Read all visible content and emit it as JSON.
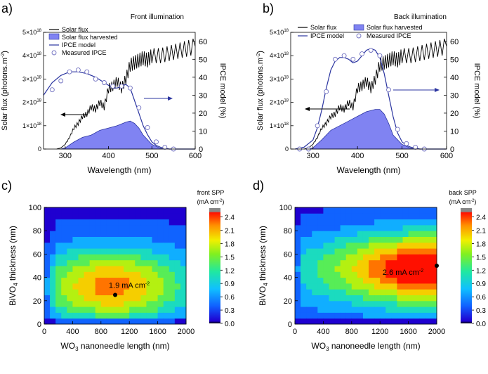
{
  "chart_data": [
    {
      "panel": "a)",
      "type": "line",
      "title": "Front illumination",
      "xlabel": "Wavelength (nm)",
      "ylabel_left": "Solar flux (photons.m",
      "ylabel_left_sup": "-2",
      "ylabel_left_end": ")",
      "ylabel_right": "IPCE model (%)",
      "xlim": [
        250,
        600
      ],
      "ylim_left": [
        0,
        5e+18
      ],
      "ylim_right": [
        0,
        65
      ],
      "xticks": [
        "300",
        "400",
        "500",
        "600"
      ],
      "xtick_values": [
        300,
        400,
        500,
        600
      ],
      "yticks_left": [
        {
          "m": "0",
          "e": ""
        },
        {
          "m": "1×10",
          "e": "18"
        },
        {
          "m": "2×10",
          "e": "18"
        },
        {
          "m": "3×10",
          "e": "18"
        },
        {
          "m": "4×10",
          "e": "18"
        },
        {
          "m": "5×10",
          "e": "18"
        }
      ],
      "yticks_left_values": [
        0,
        1e+18,
        2e+18,
        3e+18,
        4e+18,
        5e+18
      ],
      "yticks_right": [
        "0",
        "10",
        "20",
        "30",
        "40",
        "50",
        "60"
      ],
      "yticks_right_values": [
        0,
        10,
        20,
        30,
        40,
        50,
        60
      ],
      "legend": [
        "Solar flux",
        "Solar flux harvested",
        "IPCE model",
        "Measured IPCE"
      ],
      "series": [
        {
          "name": "Solar flux",
          "axis": "left",
          "x": [
            280,
            290,
            300,
            310,
            320,
            330,
            340,
            350,
            360,
            370,
            380,
            390,
            400,
            410,
            420,
            430,
            440,
            450,
            460,
            470,
            480,
            490,
            500,
            520,
            540,
            560,
            580,
            600
          ],
          "values": [
            0,
            5e+16,
            2e+17,
            5e+17,
            9e+17,
            1.1e+18,
            1.4e+18,
            1.5e+18,
            1.8e+18,
            1.7e+18,
            2e+18,
            1.8e+18,
            2.6e+18,
            2.7e+18,
            2.9e+18,
            2.6e+18,
            3e+18,
            3.6e+18,
            3.7e+18,
            3.8e+18,
            3.9e+18,
            3.8e+18,
            4e+18,
            4e+18,
            4.1e+18,
            4.2e+18,
            4.3e+18,
            4.4e+18
          ]
        },
        {
          "name": "Solar flux harvested",
          "axis": "left",
          "x": [
            290,
            300,
            320,
            340,
            360,
            380,
            400,
            420,
            440,
            450,
            460,
            470,
            480,
            500,
            520,
            530
          ],
          "values": [
            0,
            5e+16,
            3e+17,
            5e+17,
            6e+17,
            8e+17,
            9e+17,
            1e+18,
            1.15e+18,
            1.2e+18,
            1.1e+18,
            9e+17,
            6e+17,
            2e+17,
            3e+16,
            0
          ]
        },
        {
          "name": "IPCE model",
          "axis": "right",
          "x": [
            250,
            270,
            290,
            310,
            330,
            350,
            370,
            390,
            410,
            420,
            430,
            440,
            450,
            460,
            470,
            480,
            490,
            500,
            510,
            520,
            530,
            540,
            560,
            600
          ],
          "values": [
            30,
            37,
            41,
            43,
            43,
            42,
            40,
            37,
            34,
            34,
            35,
            36,
            34,
            27,
            20,
            13,
            8,
            4,
            2,
            1,
            0.5,
            0,
            0,
            0
          ]
        },
        {
          "name": "Measured IPCE",
          "axis": "right",
          "x": [
            270,
            290,
            310,
            330,
            350,
            370,
            390,
            410,
            430,
            450,
            470,
            490,
            510,
            530,
            550
          ],
          "values": [
            33,
            38,
            43,
            44,
            43,
            39,
            37,
            35,
            35,
            34,
            23,
            12,
            4,
            1,
            0
          ]
        }
      ]
    },
    {
      "panel": "b)",
      "type": "line",
      "title": "Back illumination",
      "xlabel": "Wavelength (nm)",
      "ylabel_left": "Solar flux (photons.m",
      "ylabel_left_sup": "-2",
      "ylabel_left_end": ")",
      "ylabel_right": "IPCE model (%)",
      "xlim": [
        250,
        600
      ],
      "ylim_left": [
        0,
        5e+18
      ],
      "ylim_right": [
        0,
        65
      ],
      "xticks": [
        "300",
        "400",
        "500",
        "600"
      ],
      "xtick_values": [
        300,
        400,
        500,
        600
      ],
      "yticks_left": [
        {
          "m": "0",
          "e": ""
        },
        {
          "m": "1×10",
          "e": "18"
        },
        {
          "m": "2×10",
          "e": "18"
        },
        {
          "m": "3×10",
          "e": "18"
        },
        {
          "m": "4×10",
          "e": "18"
        },
        {
          "m": "5×10",
          "e": "18"
        }
      ],
      "yticks_left_values": [
        0,
        1e+18,
        2e+18,
        3e+18,
        4e+18,
        5e+18
      ],
      "yticks_right": [
        "0",
        "10",
        "20",
        "30",
        "40",
        "50",
        "60"
      ],
      "yticks_right_values": [
        0,
        10,
        20,
        30,
        40,
        50,
        60
      ],
      "legend": [
        "Solar flux",
        "Solar flux harvested",
        "IPCE model",
        "Measured IPCE"
      ],
      "series": [
        {
          "name": "Solar flux",
          "axis": "left",
          "x": [
            280,
            290,
            300,
            310,
            320,
            330,
            340,
            350,
            360,
            370,
            380,
            390,
            400,
            410,
            420,
            430,
            440,
            450,
            460,
            470,
            480,
            490,
            500,
            520,
            540,
            560,
            580,
            600
          ],
          "values": [
            0,
            5e+16,
            2e+17,
            5e+17,
            9e+17,
            1.1e+18,
            1.4e+18,
            1.5e+18,
            1.8e+18,
            1.7e+18,
            2e+18,
            1.8e+18,
            2.6e+18,
            2.7e+18,
            2.9e+18,
            2.6e+18,
            3e+18,
            3.6e+18,
            3.7e+18,
            3.8e+18,
            3.9e+18,
            3.8e+18,
            4e+18,
            4e+18,
            4.1e+18,
            4.2e+18,
            4.3e+18,
            4.4e+18
          ]
        },
        {
          "name": "Solar flux harvested",
          "axis": "left",
          "x": [
            290,
            300,
            320,
            340,
            360,
            380,
            400,
            420,
            440,
            450,
            460,
            470,
            480,
            500,
            520,
            530
          ],
          "values": [
            0,
            5e+16,
            4e+17,
            8e+17,
            1e+18,
            1.2e+18,
            1.4e+18,
            1.6e+18,
            1.7e+18,
            1.7e+18,
            1.5e+18,
            1.1e+18,
            6e+17,
            2e+17,
            3e+16,
            0
          ]
        },
        {
          "name": "IPCE model",
          "axis": "right",
          "x": [
            260,
            280,
            300,
            310,
            320,
            330,
            340,
            350,
            360,
            370,
            380,
            390,
            400,
            410,
            420,
            430,
            440,
            450,
            460,
            470,
            480,
            490,
            500,
            510,
            520,
            540,
            560,
            600
          ],
          "values": [
            0,
            1,
            5,
            12,
            22,
            34,
            44,
            49,
            51,
            51,
            50,
            48,
            49,
            52,
            55,
            56,
            55,
            51,
            42,
            30,
            18,
            9,
            4,
            2,
            1,
            0,
            0,
            0
          ]
        },
        {
          "name": "Measured IPCE",
          "axis": "right",
          "x": [
            270,
            290,
            310,
            330,
            350,
            370,
            390,
            410,
            430,
            450,
            470,
            490,
            510,
            530,
            550
          ],
          "values": [
            0,
            0,
            13,
            32,
            50,
            52,
            50,
            53,
            55,
            52,
            33,
            11,
            3,
            1,
            0
          ]
        }
      ]
    },
    {
      "panel": "c)",
      "type": "heatmap",
      "xlabel_pre": "WO",
      "xlabel_sub": "3",
      "xlabel_post": " nanoneedle length (nm)",
      "ylabel_pre": "BiVO",
      "ylabel_sub": "4",
      "ylabel_post": " thickness (nm)",
      "xlim": [
        0,
        2000
      ],
      "ylim": [
        0,
        100
      ],
      "xticks": [
        "0",
        "400",
        "800",
        "1200",
        "1600",
        "2000"
      ],
      "xtick_values": [
        0,
        400,
        800,
        1200,
        1600,
        2000
      ],
      "yticks": [
        "0",
        "20",
        "40",
        "60",
        "80",
        "100"
      ],
      "ytick_values": [
        0,
        20,
        40,
        60,
        80,
        100
      ],
      "colorbar_title": "front SPP",
      "colorbar_unit": "(mA cm",
      "colorbar_unit_sup": "-2",
      "colorbar_unit_end": ")",
      "colorbar_ticks": [
        "0.0",
        "0.3",
        "0.6",
        "0.9",
        "1.2",
        "1.5",
        "1.8",
        "2.1",
        "2.4"
      ],
      "colorbar_tick_values": [
        0,
        0.3,
        0.6,
        0.9,
        1.2,
        1.5,
        1.8,
        2.1,
        2.4
      ],
      "zlim": [
        0,
        2.6
      ],
      "max_point": {
        "x": 1000,
        "y": 25
      },
      "annotation_value": "1.9 mA cm",
      "annotation_sup": "-2"
    },
    {
      "panel": "d)",
      "type": "heatmap",
      "xlabel_pre": "WO",
      "xlabel_sub": "3",
      "xlabel_post": " nanoneedle length (nm)",
      "ylabel_pre": "BiVO",
      "ylabel_sub": "4",
      "ylabel_post": " thickness (nm)",
      "xlim": [
        0,
        2000
      ],
      "ylim": [
        0,
        100
      ],
      "xticks": [
        "0",
        "400",
        "800",
        "1200",
        "1600",
        "2000"
      ],
      "xtick_values": [
        0,
        400,
        800,
        1200,
        1600,
        2000
      ],
      "yticks": [
        "0",
        "20",
        "40",
        "60",
        "80",
        "100"
      ],
      "ytick_values": [
        0,
        20,
        40,
        60,
        80,
        100
      ],
      "colorbar_title": "back SPP",
      "colorbar_unit": "(mA cm",
      "colorbar_unit_sup": "-2",
      "colorbar_unit_end": ")",
      "colorbar_ticks": [
        "0.0",
        "0.3",
        "0.6",
        "0.9",
        "1.2",
        "1.5",
        "1.8",
        "2.1",
        "2.4"
      ],
      "colorbar_tick_values": [
        0,
        0.3,
        0.6,
        0.9,
        1.2,
        1.5,
        1.8,
        2.1,
        2.4
      ],
      "zlim": [
        0,
        2.6
      ],
      "max_point": {
        "x": 2000,
        "y": 50
      },
      "annotation_value": "2.6 mA cm",
      "annotation_sup": "-2"
    }
  ]
}
